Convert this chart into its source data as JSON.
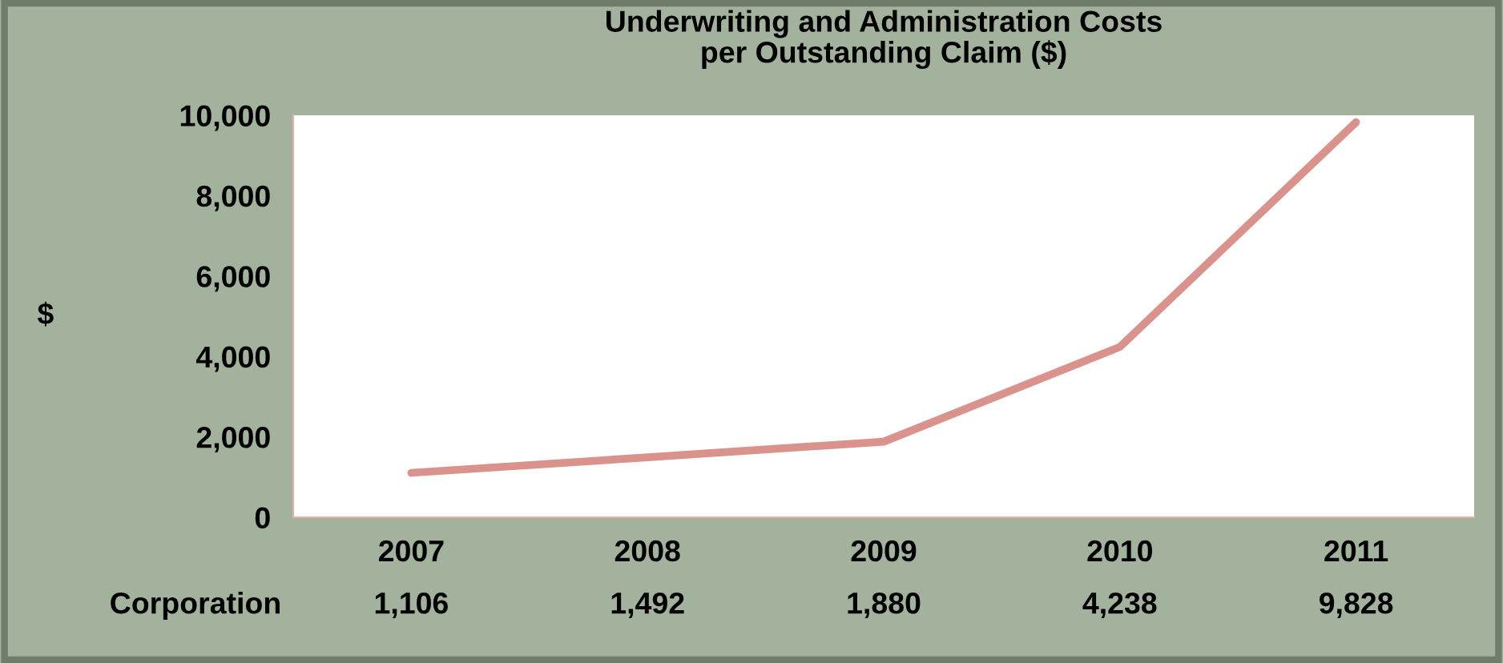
{
  "chart_data": {
    "type": "line",
    "title": "Underwriting and Administration Costs\nper Outstanding Claim ($)",
    "ylabel": "$",
    "categories": [
      "2007",
      "2008",
      "2009",
      "2010",
      "2011"
    ],
    "series": [
      {
        "name": "Corporation",
        "color": "#d9938c",
        "values": [
          1106,
          1492,
          1880,
          4238,
          9828
        ],
        "value_labels": [
          "1,106",
          "1,492",
          "1,880",
          "4,238",
          "9,828"
        ]
      }
    ],
    "ylim": [
      0,
      10000
    ],
    "yticks": [
      {
        "value": 0,
        "label": "0"
      },
      {
        "value": 2000,
        "label": "2,000"
      },
      {
        "value": 4000,
        "label": "4,000"
      },
      {
        "value": 6000,
        "label": "6,000"
      },
      {
        "value": 8000,
        "label": "8,000"
      },
      {
        "value": 10000,
        "label": "10,000"
      }
    ],
    "grid": false,
    "marker": "none",
    "line_style": "solid"
  }
}
